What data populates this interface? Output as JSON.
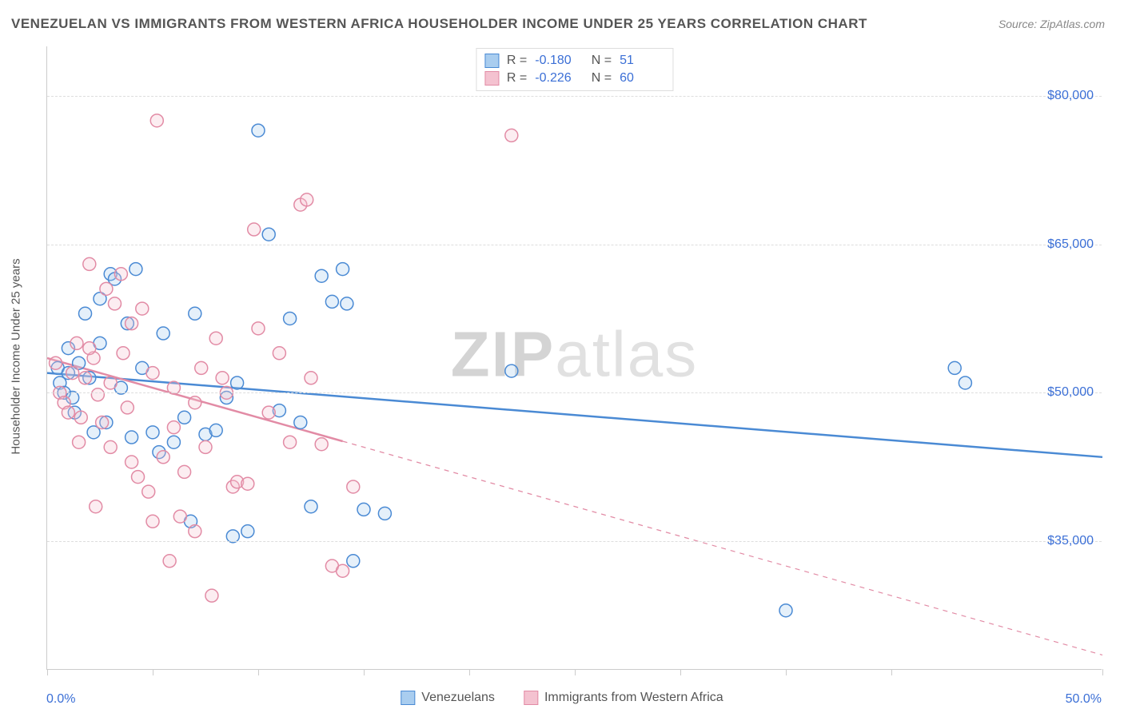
{
  "title": "VENEZUELAN VS IMMIGRANTS FROM WESTERN AFRICA HOUSEHOLDER INCOME UNDER 25 YEARS CORRELATION CHART",
  "source": "Source: ZipAtlas.com",
  "watermark_bold": "ZIP",
  "watermark_light": "atlas",
  "chart": {
    "type": "scatter",
    "ylabel": "Householder Income Under 25 years",
    "xlim": [
      0,
      50
    ],
    "ylim": [
      22000,
      85000
    ],
    "x_ticks": [
      0,
      5,
      10,
      15,
      20,
      25,
      30,
      35,
      40,
      50
    ],
    "x_axis_min_label": "0.0%",
    "x_axis_max_label": "50.0%",
    "y_gridlines": [
      35000,
      50000,
      65000,
      80000
    ],
    "y_tick_labels": [
      "$35,000",
      "$50,000",
      "$65,000",
      "$80,000"
    ],
    "background_color": "#ffffff",
    "grid_color": "#dddddd",
    "axis_color": "#cccccc",
    "tick_label_color": "#3b6fd6",
    "marker_radius": 8,
    "marker_stroke_width": 1.5,
    "marker_fill_opacity": 0.3,
    "trend_line_width": 2.5,
    "series": [
      {
        "name": "Venezuelans",
        "color_stroke": "#4a8ad4",
        "color_fill": "#a9cdef",
        "R": "-0.180",
        "N": "51",
        "trend": {
          "x1": 0,
          "y1": 52000,
          "x2": 50,
          "y2": 43500,
          "solid_until_x": 50,
          "dash": false
        },
        "points": [
          [
            0.5,
            52500
          ],
          [
            0.6,
            51000
          ],
          [
            0.8,
            50000
          ],
          [
            1.0,
            52000
          ],
          [
            1.2,
            49500
          ],
          [
            1.3,
            48000
          ],
          [
            1.5,
            53000
          ],
          [
            1.8,
            58000
          ],
          [
            2.0,
            51500
          ],
          [
            2.2,
            46000
          ],
          [
            2.5,
            55000
          ],
          [
            2.8,
            47000
          ],
          [
            3.0,
            62000
          ],
          [
            3.2,
            61500
          ],
          [
            3.5,
            50500
          ],
          [
            3.8,
            57000
          ],
          [
            4.0,
            45500
          ],
          [
            4.2,
            62500
          ],
          [
            4.5,
            52500
          ],
          [
            5.0,
            46000
          ],
          [
            5.3,
            44000
          ],
          [
            5.5,
            56000
          ],
          [
            6.0,
            45000
          ],
          [
            6.5,
            47500
          ],
          [
            6.8,
            37000
          ],
          [
            7.0,
            58000
          ],
          [
            7.5,
            45800
          ],
          [
            8.0,
            46200
          ],
          [
            8.5,
            49500
          ],
          [
            8.8,
            35500
          ],
          [
            9.0,
            51000
          ],
          [
            9.5,
            36000
          ],
          [
            10.0,
            76500
          ],
          [
            10.5,
            66000
          ],
          [
            11.0,
            48200
          ],
          [
            11.5,
            57500
          ],
          [
            12.0,
            47000
          ],
          [
            12.5,
            38500
          ],
          [
            13.0,
            61800
          ],
          [
            13.5,
            59200
          ],
          [
            14.0,
            62500
          ],
          [
            14.2,
            59000
          ],
          [
            14.5,
            33000
          ],
          [
            15.0,
            38200
          ],
          [
            16.0,
            37800
          ],
          [
            22.0,
            52200
          ],
          [
            35.0,
            28000
          ],
          [
            43.0,
            52500
          ],
          [
            43.5,
            51000
          ],
          [
            1.0,
            54500
          ],
          [
            2.5,
            59500
          ]
        ]
      },
      {
        "name": "Immigrants from Western Africa",
        "color_stroke": "#e28ba5",
        "color_fill": "#f4c2d0",
        "R": "-0.226",
        "N": "60",
        "trend": {
          "x1": 0,
          "y1": 53500,
          "x2": 50,
          "y2": 23500,
          "solid_until_x": 14,
          "dash": true
        },
        "points": [
          [
            0.4,
            53000
          ],
          [
            0.6,
            50000
          ],
          [
            0.8,
            49000
          ],
          [
            1.0,
            48000
          ],
          [
            1.2,
            52000
          ],
          [
            1.4,
            55000
          ],
          [
            1.6,
            47500
          ],
          [
            1.8,
            51500
          ],
          [
            2.0,
            63000
          ],
          [
            2.2,
            53500
          ],
          [
            2.4,
            49800
          ],
          [
            2.6,
            47000
          ],
          [
            2.8,
            60500
          ],
          [
            3.0,
            51000
          ],
          [
            3.2,
            59000
          ],
          [
            3.5,
            62000
          ],
          [
            3.8,
            48500
          ],
          [
            4.0,
            43000
          ],
          [
            4.3,
            41500
          ],
          [
            4.5,
            58500
          ],
          [
            4.8,
            40000
          ],
          [
            5.0,
            52000
          ],
          [
            5.2,
            77500
          ],
          [
            5.5,
            43500
          ],
          [
            5.8,
            33000
          ],
          [
            6.0,
            50500
          ],
          [
            6.3,
            37500
          ],
          [
            6.5,
            42000
          ],
          [
            7.0,
            49000
          ],
          [
            7.3,
            52500
          ],
          [
            7.5,
            44500
          ],
          [
            7.8,
            29500
          ],
          [
            8.0,
            55500
          ],
          [
            8.3,
            51500
          ],
          [
            8.5,
            50000
          ],
          [
            8.8,
            40500
          ],
          [
            9.0,
            41000
          ],
          [
            9.5,
            40800
          ],
          [
            9.8,
            66500
          ],
          [
            10.0,
            56500
          ],
          [
            10.5,
            48000
          ],
          [
            11.0,
            54000
          ],
          [
            11.5,
            45000
          ],
          [
            12.0,
            69000
          ],
          [
            12.3,
            69500
          ],
          [
            12.5,
            51500
          ],
          [
            13.0,
            44800
          ],
          [
            13.5,
            32500
          ],
          [
            14.0,
            32000
          ],
          [
            14.5,
            40500
          ],
          [
            2.0,
            54500
          ],
          [
            3.0,
            44500
          ],
          [
            4.0,
            57000
          ],
          [
            5.0,
            37000
          ],
          [
            6.0,
            46500
          ],
          [
            7.0,
            36000
          ],
          [
            1.5,
            45000
          ],
          [
            2.3,
            38500
          ],
          [
            22.0,
            76000
          ],
          [
            3.6,
            54000
          ]
        ]
      }
    ],
    "bottom_legend": [
      {
        "label": "Venezuelans",
        "swatch_fill": "#a9cdef",
        "swatch_stroke": "#4a8ad4"
      },
      {
        "label": "Immigrants from Western Africa",
        "swatch_fill": "#f4c2d0",
        "swatch_stroke": "#e28ba5"
      }
    ]
  }
}
